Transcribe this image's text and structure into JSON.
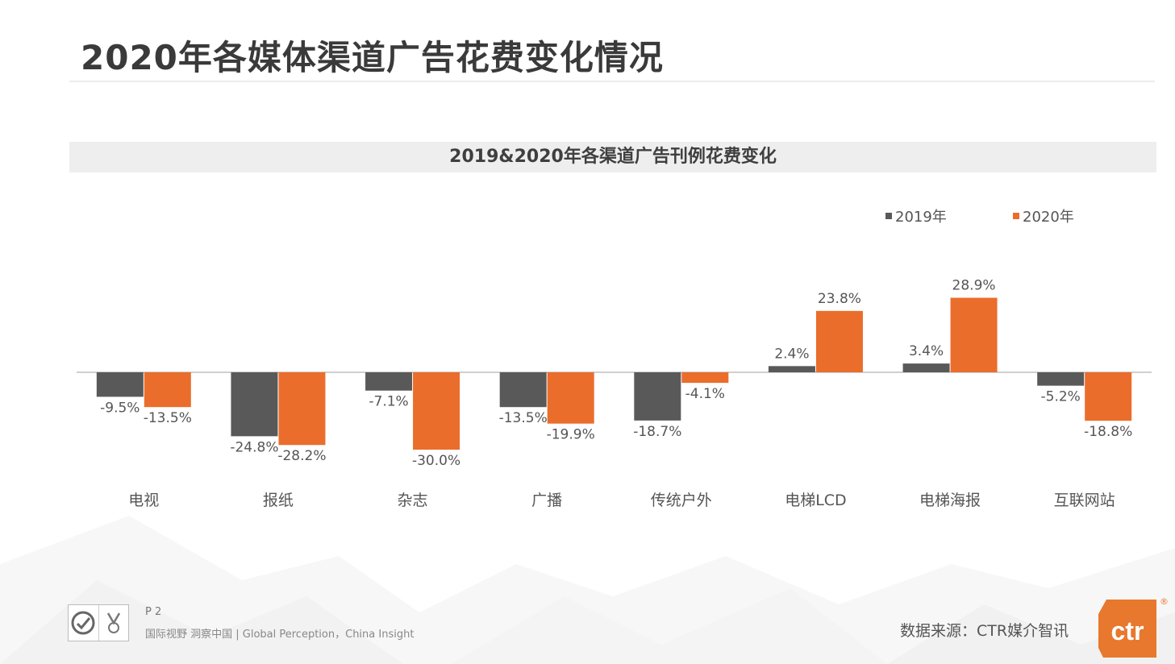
{
  "header": {
    "title": "2020年各媒体渠道广告花费变化情况"
  },
  "chart_data": {
    "type": "bar",
    "title": "2019&2020年各渠道广告刊例花费变化",
    "categories": [
      "电视",
      "报纸",
      "杂志",
      "广播",
      "传统户外",
      "电梯LCD",
      "电梯海报",
      "互联网站"
    ],
    "series": [
      {
        "name": "2019年",
        "values": [
          -9.5,
          -24.8,
          -7.1,
          -13.5,
          -18.7,
          2.4,
          3.4,
          -5.2
        ],
        "color": "#595959"
      },
      {
        "name": "2020年",
        "values": [
          -13.5,
          -28.2,
          -30.0,
          -19.9,
          -4.1,
          23.8,
          28.9,
          -18.8
        ],
        "color": "#ea6d2c"
      }
    ],
    "value_suffix": "%",
    "grid": false,
    "legend_position": "top-right",
    "xlabel": "",
    "ylabel": ""
  },
  "footer": {
    "page": "P 2",
    "slogan": "国际视野  洞察中国 |  Global Perception，China Insight",
    "source": "数据来源：CTR媒介智讯",
    "logo_text": "ctr",
    "logo_mark": "®"
  }
}
